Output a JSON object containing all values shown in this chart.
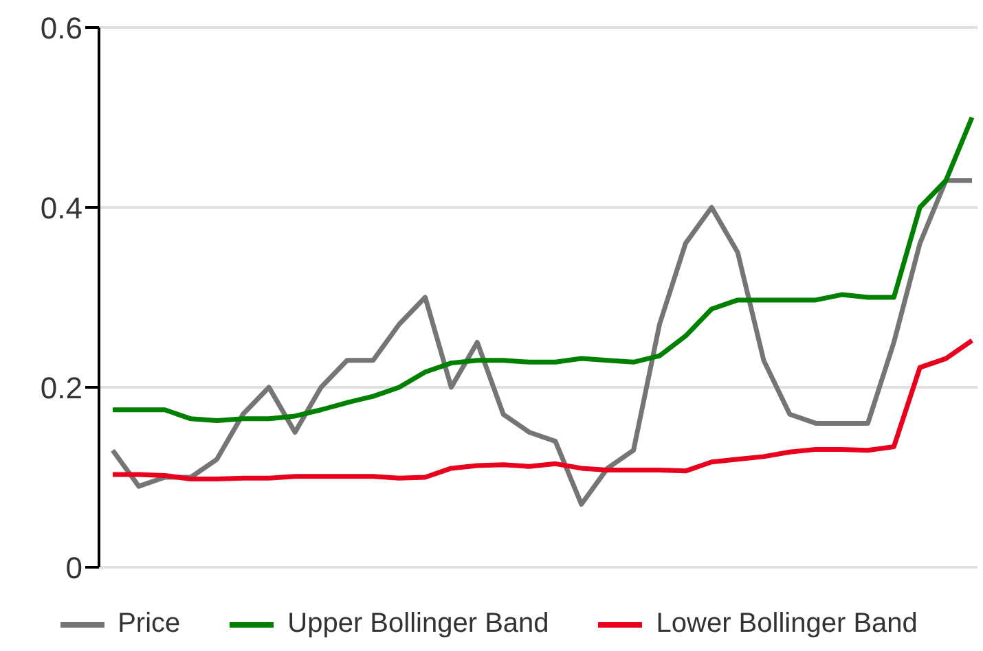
{
  "chart_data": {
    "type": "line",
    "categories": [
      null,
      null,
      null,
      null,
      null,
      null,
      null,
      null,
      null,
      null,
      null,
      null,
      null,
      null,
      null,
      null,
      null,
      null,
      null,
      null,
      null,
      null,
      null,
      null,
      null,
      null,
      null,
      null,
      null,
      null,
      null,
      null,
      null,
      null
    ],
    "series": [
      {
        "name": "Price",
        "color": "#757575",
        "values": [
          0.13,
          0.09,
          0.1,
          0.1,
          0.12,
          0.17,
          0.2,
          0.15,
          0.2,
          0.23,
          0.23,
          0.27,
          0.3,
          0.2,
          0.25,
          0.17,
          0.15,
          0.14,
          0.07,
          0.11,
          0.13,
          0.27,
          0.36,
          0.4,
          0.35,
          0.23,
          0.17,
          0.16,
          0.16,
          0.16,
          0.25,
          0.36,
          0.43,
          0.43
        ]
      },
      {
        "name": "Upper Bollinger Band",
        "color": "#008000",
        "values": [
          0.175,
          0.175,
          0.175,
          0.165,
          0.163,
          0.165,
          0.165,
          0.168,
          0.175,
          0.183,
          0.19,
          0.2,
          0.217,
          0.227,
          0.23,
          0.23,
          0.228,
          0.228,
          0.232,
          0.23,
          0.228,
          0.235,
          0.257,
          0.287,
          0.297,
          0.297,
          0.297,
          0.297,
          0.303,
          0.3,
          0.3,
          0.4,
          0.43,
          0.5
        ]
      },
      {
        "name": "Lower Bollinger Band",
        "color": "#e8001c",
        "values": [
          0.103,
          0.103,
          0.102,
          0.098,
          0.098,
          0.099,
          0.099,
          0.101,
          0.101,
          0.101,
          0.101,
          0.099,
          0.1,
          0.11,
          0.113,
          0.114,
          0.112,
          0.115,
          0.11,
          0.108,
          0.108,
          0.108,
          0.107,
          0.117,
          0.12,
          0.123,
          0.128,
          0.131,
          0.131,
          0.13,
          0.134,
          0.222,
          0.232,
          0.252
        ]
      }
    ],
    "ylim": [
      0,
      0.6
    ],
    "yticks": [
      0,
      0.2,
      0.4,
      0.6
    ],
    "grid": "y",
    "legend": "bottom",
    "marker": "none",
    "line_style": "solid"
  }
}
